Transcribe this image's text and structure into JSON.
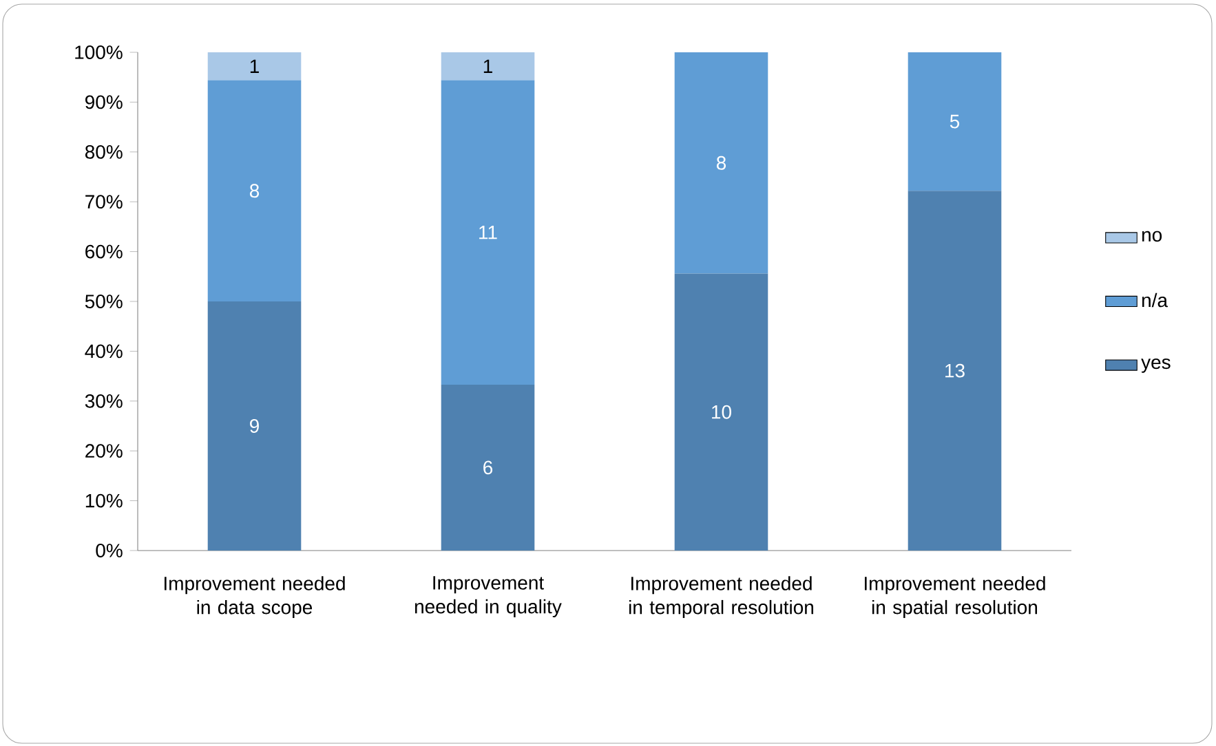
{
  "chart_data": {
    "type": "bar",
    "stacked": true,
    "categories": [
      "Improvement needed in data scope",
      "Improvement needed in quality",
      "Improvement needed in temporal resolution",
      "Improvement needed in spatial resolution"
    ],
    "series": [
      {
        "name": "yes",
        "color": "#4f81b0",
        "values": [
          50,
          33.3,
          55.6,
          72.2
        ]
      },
      {
        "name": "n/a",
        "color": "#5f9dd5",
        "values": [
          44.4,
          61.1,
          44.4,
          27.8
        ]
      },
      {
        "name": "no",
        "color": "#a9c8e7",
        "values": [
          5.6,
          5.6,
          0,
          0
        ]
      }
    ],
    "annotations": [
      "9",
      "6",
      "10",
      "13",
      "8",
      "11",
      "8",
      "5",
      "1",
      "1"
    ],
    "ylim": [
      0,
      100
    ],
    "yticks": [
      {
        "value": 0,
        "label": "0%"
      },
      {
        "value": 10,
        "label": "10%"
      },
      {
        "value": 20,
        "label": "20%"
      },
      {
        "value": 30,
        "label": "30%"
      },
      {
        "value": 40,
        "label": "40%"
      },
      {
        "value": 50,
        "label": "50%"
      },
      {
        "value": 60,
        "label": "60%"
      },
      {
        "value": 70,
        "label": "70%"
      },
      {
        "value": 80,
        "label": "80%"
      },
      {
        "value": 90,
        "label": "90%"
      },
      {
        "value": 100,
        "label": "100%"
      }
    ],
    "grid": false,
    "legend": "right"
  }
}
